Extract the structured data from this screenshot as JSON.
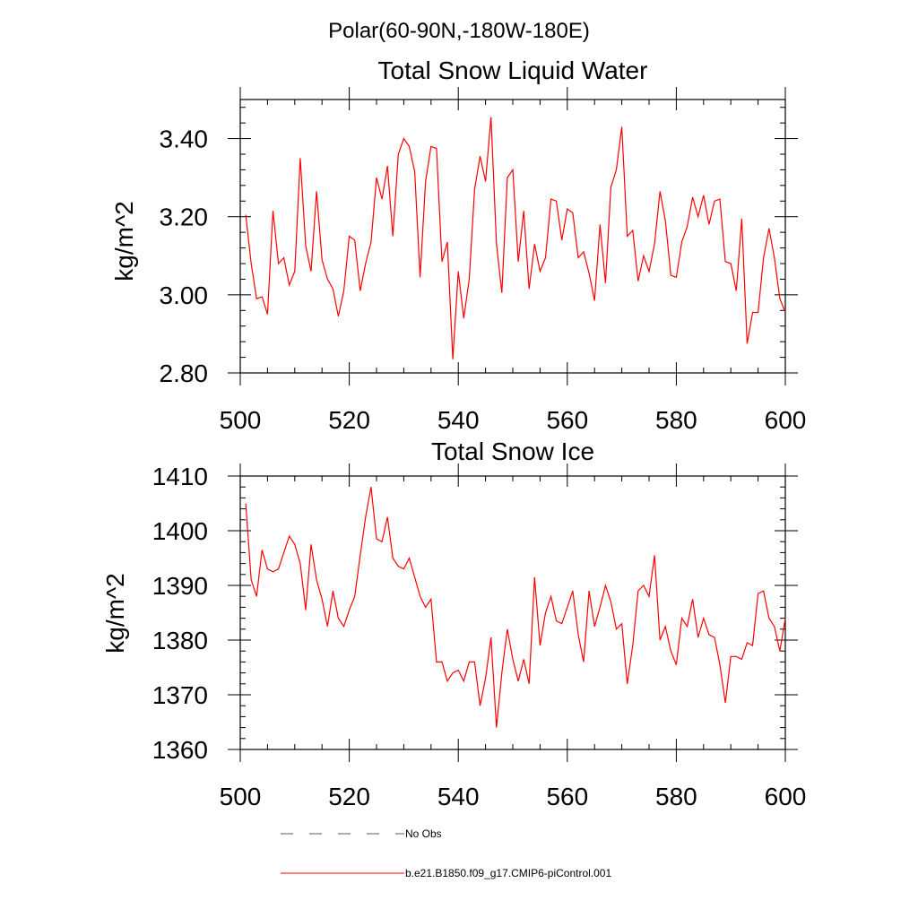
{
  "figure": {
    "suptitle": "Polar(60-90N,-180W-180E)"
  },
  "chart_data": [
    {
      "type": "line",
      "title": "Total Snow Liquid Water",
      "ylabel": "kg/m^2",
      "xlabel": "",
      "xlim": [
        500,
        600
      ],
      "ylim": [
        2.8,
        3.5
      ],
      "xticks": [
        500,
        520,
        540,
        560,
        580,
        600
      ],
      "yticks": [
        2.8,
        3.0,
        3.2,
        3.4
      ],
      "ytick_labels": [
        "2.80",
        "3.00",
        "3.20",
        "3.40"
      ],
      "grid": false,
      "series": [
        {
          "name": "b.e21.B1850.f09_g17.CMIP6-piControl.001",
          "color": "#ff0000",
          "x": [
            501,
            502,
            503,
            504,
            505,
            506,
            507,
            508,
            509,
            510,
            511,
            512,
            513,
            514,
            515,
            516,
            517,
            518,
            519,
            520,
            521,
            522,
            523,
            524,
            525,
            526,
            527,
            528,
            529,
            530,
            531,
            532,
            533,
            534,
            535,
            536,
            537,
            538,
            539,
            540,
            541,
            542,
            543,
            544,
            545,
            546,
            547,
            548,
            549,
            550,
            551,
            552,
            553,
            554,
            555,
            556,
            557,
            558,
            559,
            560,
            561,
            562,
            563,
            564,
            565,
            566,
            567,
            568,
            569,
            570,
            571,
            572,
            573,
            574,
            575,
            576,
            577,
            578,
            579,
            580,
            581,
            582,
            583,
            584,
            585,
            586,
            587,
            588,
            589,
            590,
            591,
            592,
            593,
            594,
            595,
            596,
            597,
            598,
            599,
            600
          ],
          "y": [
            3.205,
            3.08,
            2.99,
            2.995,
            2.95,
            3.215,
            3.08,
            3.095,
            3.025,
            3.06,
            3.35,
            3.125,
            3.06,
            3.265,
            3.09,
            3.04,
            3.015,
            2.945,
            3.01,
            3.15,
            3.14,
            3.01,
            3.08,
            3.135,
            3.3,
            3.245,
            3.33,
            3.15,
            3.36,
            3.4,
            3.38,
            3.315,
            3.045,
            3.29,
            3.38,
            3.375,
            3.085,
            3.135,
            2.835,
            3.06,
            2.94,
            3.04,
            3.27,
            3.355,
            3.29,
            3.455,
            3.13,
            3.005,
            3.3,
            3.32,
            3.085,
            3.215,
            3.015,
            3.13,
            3.06,
            3.095,
            3.245,
            3.24,
            3.14,
            3.22,
            3.21,
            3.095,
            3.11,
            3.055,
            2.985,
            3.18,
            3.03,
            3.275,
            3.32,
            3.43,
            3.15,
            3.165,
            3.035,
            3.1,
            3.06,
            3.13,
            3.265,
            3.19,
            3.05,
            3.045,
            3.135,
            3.175,
            3.25,
            3.2,
            3.255,
            3.18,
            3.24,
            3.245,
            3.085,
            3.08,
            3.01,
            3.195,
            2.875,
            2.955,
            2.955,
            3.095,
            3.17,
            3.095,
            2.99,
            2.955
          ]
        }
      ]
    },
    {
      "type": "line",
      "title": "Total Snow Ice",
      "ylabel": "kg/m^2",
      "xlabel": "",
      "xlim": [
        500,
        600
      ],
      "ylim": [
        1360,
        1410
      ],
      "xticks": [
        500,
        520,
        540,
        560,
        580,
        600
      ],
      "yticks": [
        1360,
        1370,
        1380,
        1390,
        1400,
        1410
      ],
      "ytick_labels": [
        "1360",
        "1370",
        "1380",
        "1390",
        "1400",
        "1410"
      ],
      "grid": false,
      "series": [
        {
          "name": "b.e21.B1850.f09_g17.CMIP6-piControl.001",
          "color": "#ff0000",
          "x": [
            501,
            502,
            503,
            504,
            505,
            506,
            507,
            508,
            509,
            510,
            511,
            512,
            513,
            514,
            515,
            516,
            517,
            518,
            519,
            520,
            521,
            522,
            523,
            524,
            525,
            526,
            527,
            528,
            529,
            530,
            531,
            532,
            533,
            534,
            535,
            536,
            537,
            538,
            539,
            540,
            541,
            542,
            543,
            544,
            545,
            546,
            547,
            548,
            549,
            550,
            551,
            552,
            553,
            554,
            555,
            556,
            557,
            558,
            559,
            560,
            561,
            562,
            563,
            564,
            565,
            566,
            567,
            568,
            569,
            570,
            571,
            572,
            573,
            574,
            575,
            576,
            577,
            578,
            579,
            580,
            581,
            582,
            583,
            584,
            585,
            586,
            587,
            588,
            589,
            590,
            591,
            592,
            593,
            594,
            595,
            596,
            597,
            598,
            599,
            600
          ],
          "y": [
            1405,
            1391,
            1388,
            1396.5,
            1393,
            1392.5,
            1393,
            1396,
            1399,
            1397.5,
            1394,
            1385.5,
            1397.5,
            1391,
            1387.5,
            1382.5,
            1389,
            1384,
            1382.5,
            1385.5,
            1388,
            1395.5,
            1402.5,
            1408,
            1398.5,
            1398,
            1402.5,
            1395,
            1393.5,
            1393,
            1395,
            1391.5,
            1388,
            1386,
            1387.5,
            1376,
            1376,
            1372.5,
            1374,
            1374.5,
            1372.5,
            1376,
            1376,
            1368,
            1373,
            1380.5,
            1364,
            1374,
            1382,
            1376.5,
            1372.5,
            1376.5,
            1372,
            1391.5,
            1379,
            1385,
            1388,
            1383.5,
            1383,
            1386,
            1389,
            1381,
            1376,
            1389,
            1382.5,
            1386,
            1390,
            1387,
            1382,
            1383,
            1372,
            1379,
            1389,
            1390,
            1388,
            1395.5,
            1380,
            1382.5,
            1378,
            1375.5,
            1384,
            1382.5,
            1387.5,
            1380.5,
            1384,
            1381,
            1380.5,
            1375.5,
            1368.5,
            1377,
            1377,
            1376.5,
            1379.5,
            1379,
            1388.5,
            1389,
            1384,
            1382.5,
            1378,
            1384
          ]
        }
      ]
    }
  ],
  "legend": {
    "placement": "bottom-center",
    "entries": [
      {
        "label": "No Obs",
        "color": "#555577",
        "dash": true
      },
      {
        "label": "b.e21.B1850.f09_g17.CMIP6-piControl.001",
        "color": "#ff0000",
        "dash": false
      }
    ]
  }
}
